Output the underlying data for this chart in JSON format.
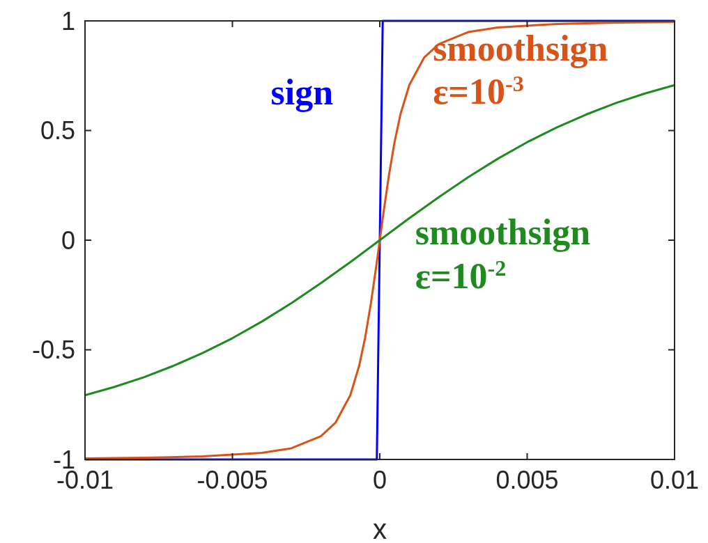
{
  "chart_data": {
    "type": "line",
    "xlabel": "x",
    "xlim": [
      -0.01,
      0.01
    ],
    "xticks": [
      -0.01,
      -0.005,
      0,
      0.005,
      0.01
    ],
    "ylim": [
      -1,
      1
    ],
    "yticks": [
      -1,
      -0.5,
      0,
      0.5,
      1
    ],
    "grid": false,
    "legend": false,
    "marker": "none",
    "line_style": "solid",
    "series": [
      {
        "name": "sign",
        "color": "#0000ff",
        "x": [
          -0.01,
          -0.0001,
          0.0001,
          0.01
        ],
        "values": [
          -1,
          -1,
          1,
          1
        ]
      },
      {
        "name": "smoothsign ε=10$^{-3}$",
        "color": "#d95319",
        "x": [
          -0.01,
          -0.008,
          -0.006,
          -0.004,
          -0.003,
          -0.002,
          -0.0015,
          -0.001,
          -0.0007,
          -0.0005,
          -0.0003,
          -0.0001,
          0,
          0.0001,
          0.0003,
          0.0005,
          0.0007,
          0.001,
          0.0015,
          0.002,
          0.003,
          0.004,
          0.006,
          0.008,
          0.01
        ],
        "values": [
          -0.995,
          -0.992,
          -0.986,
          -0.97,
          -0.949,
          -0.894,
          -0.832,
          -0.707,
          -0.573,
          -0.447,
          -0.287,
          -0.1,
          0,
          0.1,
          0.287,
          0.447,
          0.573,
          0.707,
          0.832,
          0.894,
          0.949,
          0.97,
          0.986,
          0.992,
          0.995
        ]
      },
      {
        "name": "smoothsign ε=10$^{-2}$",
        "color": "#1f8a1f",
        "x": [
          -0.01,
          -0.009,
          -0.008,
          -0.007,
          -0.006,
          -0.005,
          -0.004,
          -0.003,
          -0.002,
          -0.001,
          0,
          0.001,
          0.002,
          0.003,
          0.004,
          0.005,
          0.006,
          0.007,
          0.008,
          0.009,
          0.01
        ],
        "values": [
          -0.707,
          -0.669,
          -0.625,
          -0.573,
          -0.514,
          -0.447,
          -0.371,
          -0.287,
          -0.196,
          -0.1,
          0,
          0.1,
          0.196,
          0.287,
          0.371,
          0.447,
          0.514,
          0.573,
          0.625,
          0.669,
          0.707
        ]
      }
    ]
  }
}
